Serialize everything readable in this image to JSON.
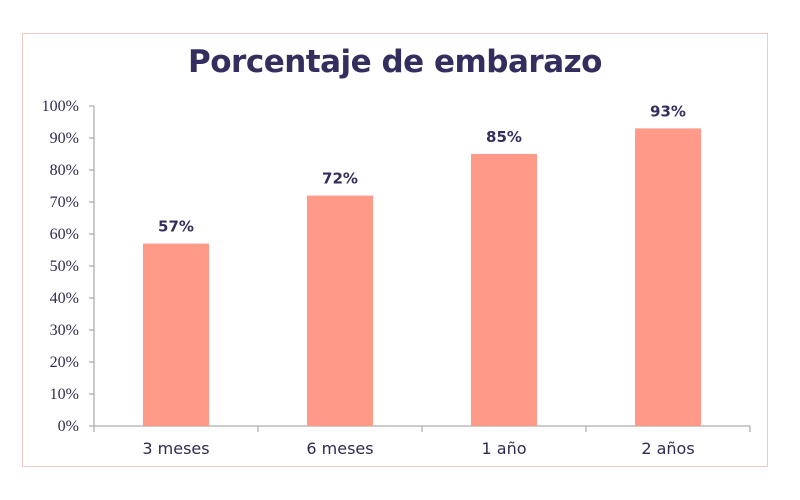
{
  "chart_data": {
    "type": "bar",
    "title": "Porcentaje de embarazo",
    "categories": [
      "3 meses",
      "6 meses",
      "1 año",
      "2 años"
    ],
    "values": [
      57,
      72,
      85,
      93
    ],
    "data_labels": [
      "57%",
      "72%",
      "85%",
      "93%"
    ],
    "y_ticks": [
      "0%",
      "10%",
      "20%",
      "30%",
      "40%",
      "50%",
      "60%",
      "70%",
      "80%",
      "90%",
      "100%"
    ],
    "xlabel": "",
    "ylabel": "",
    "ylim": [
      0,
      100
    ],
    "grid": false,
    "legend": "none",
    "colors": {
      "bar": "#ff9a88",
      "title": "#342e5e",
      "axis": "#9a9a9a"
    }
  }
}
